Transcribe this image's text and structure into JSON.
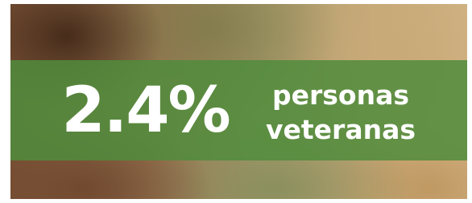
{
  "stat": {
    "value": "2.4%",
    "label_lines": [
      "personas",
      "veteranas"
    ]
  }
}
